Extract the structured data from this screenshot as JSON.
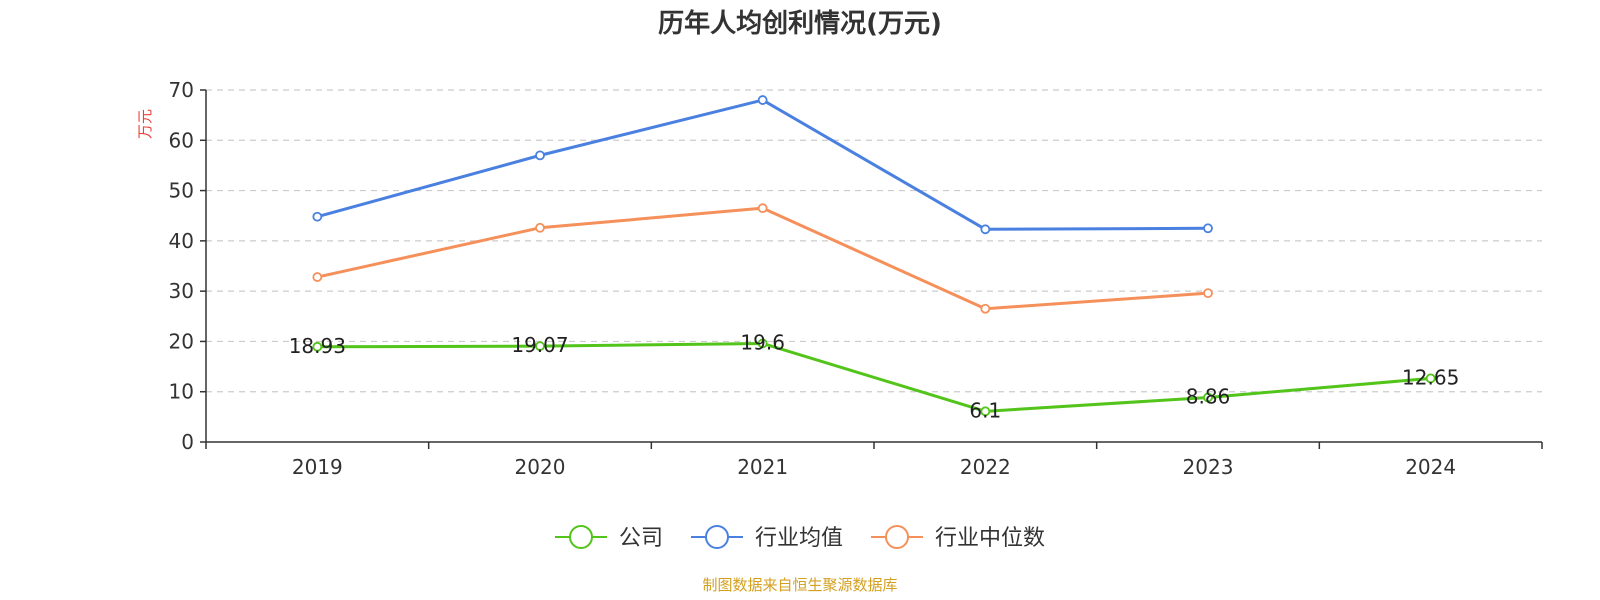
{
  "chart_data": {
    "type": "line",
    "title": "历年人均创利情况(万元)",
    "ylabel": "万元",
    "xlabel": "",
    "categories": [
      "2019",
      "2020",
      "2021",
      "2022",
      "2023",
      "2024"
    ],
    "ylim": [
      0,
      70
    ],
    "yticks": [
      0,
      10,
      20,
      30,
      40,
      50,
      60,
      70
    ],
    "grid": true,
    "legend_position": "bottom-center",
    "series": [
      {
        "name": "公司",
        "color": "#52c41a",
        "values": [
          18.93,
          19.07,
          19.6,
          6.1,
          8.86,
          12.65
        ],
        "labels": [
          "18.93",
          "19.07",
          "19.6",
          "6.1",
          "8.86",
          "12.65"
        ]
      },
      {
        "name": "行业均值",
        "color": "#4a80e0",
        "values": [
          44.8,
          57.0,
          68.0,
          42.3,
          42.5,
          null
        ]
      },
      {
        "name": "行业中位数",
        "color": "#f5905a",
        "values": [
          32.8,
          42.6,
          46.5,
          26.5,
          29.6,
          null
        ]
      }
    ],
    "source": "制图数据来自恒生聚源数据库",
    "ylabel_color": "#e8433a",
    "source_color": "#d4a020"
  }
}
